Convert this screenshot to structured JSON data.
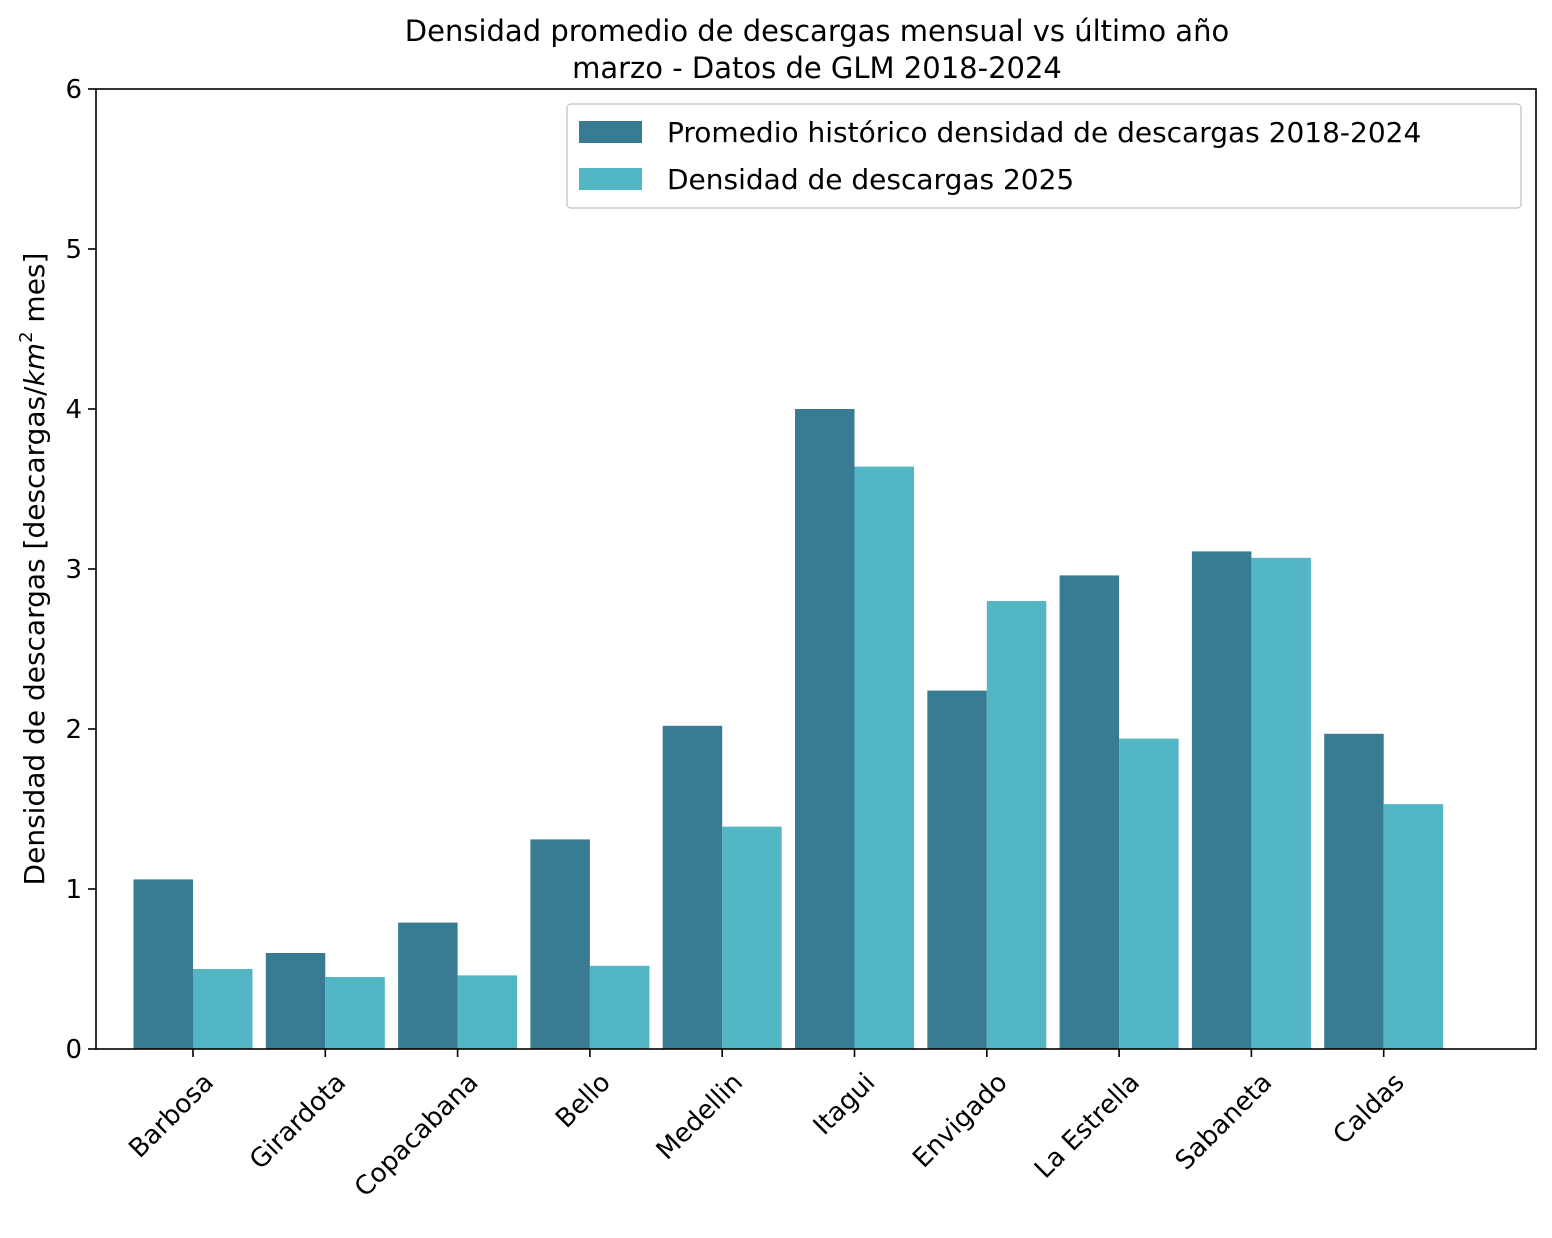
{
  "chart_data": {
    "type": "bar",
    "title": "Densidad promedio de descargas mensual vs último año",
    "subtitle": "marzo - Datos de GLM 2018-2024",
    "ylabel_prefix": "Densidad de descargas [descargas/",
    "ylabel_unit": "km",
    "ylabel_exponent": "2",
    "ylabel_suffix": " mes]",
    "xlabel": "",
    "ylim": [
      0,
      6
    ],
    "yticks": [
      0,
      1,
      2,
      3,
      4,
      5,
      6
    ],
    "grid": false,
    "legend_position": "top-right",
    "categories": [
      "Barbosa",
      "Girardota",
      "Copacabana",
      "Bello",
      "Medellin",
      "Itagui",
      "Envigado",
      "La Estrella",
      "Sabaneta",
      "Caldas"
    ],
    "series": [
      {
        "name": "Promedio histórico densidad de descargas 2018-2024",
        "color": "#3a7b94",
        "values": [
          1.06,
          0.6,
          0.79,
          1.31,
          2.02,
          4.0,
          2.24,
          2.96,
          3.11,
          1.97
        ]
      },
      {
        "name": "Densidad de descargas 2025",
        "color": "#52b6c4",
        "values": [
          0.5,
          0.45,
          0.46,
          0.52,
          1.39,
          3.64,
          2.8,
          1.94,
          3.07,
          1.53
        ]
      }
    ]
  }
}
